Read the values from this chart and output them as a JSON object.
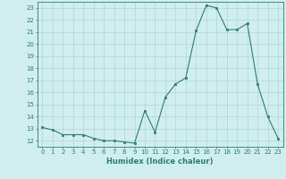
{
  "xlabel": "Humidex (Indice chaleur)",
  "ylabel": "",
  "x_values": [
    0,
    1,
    2,
    3,
    4,
    5,
    6,
    7,
    8,
    9,
    10,
    11,
    12,
    13,
    14,
    15,
    16,
    17,
    18,
    19,
    20,
    21,
    22,
    23
  ],
  "y_values": [
    13.1,
    12.9,
    12.5,
    12.5,
    12.5,
    12.2,
    12.0,
    12.0,
    11.9,
    11.8,
    14.5,
    12.7,
    15.6,
    16.7,
    17.2,
    21.1,
    23.2,
    23.0,
    21.2,
    21.2,
    21.7,
    16.7,
    14.0,
    12.2
  ],
  "line_color": "#2e7d6e",
  "marker_color": "#2e7d6e",
  "bg_color": "#d0eeee",
  "grid_color": "#b0d5d5",
  "ylim": [
    11.5,
    23.5
  ],
  "yticks": [
    12,
    13,
    14,
    15,
    16,
    17,
    18,
    19,
    20,
    21,
    22,
    23
  ],
  "xlim": [
    -0.5,
    23.5
  ],
  "xticks": [
    0,
    1,
    2,
    3,
    4,
    5,
    6,
    7,
    8,
    9,
    10,
    11,
    12,
    13,
    14,
    15,
    16,
    17,
    18,
    19,
    20,
    21,
    22,
    23
  ],
  "tick_fontsize": 5.0,
  "xlabel_fontsize": 6.0
}
